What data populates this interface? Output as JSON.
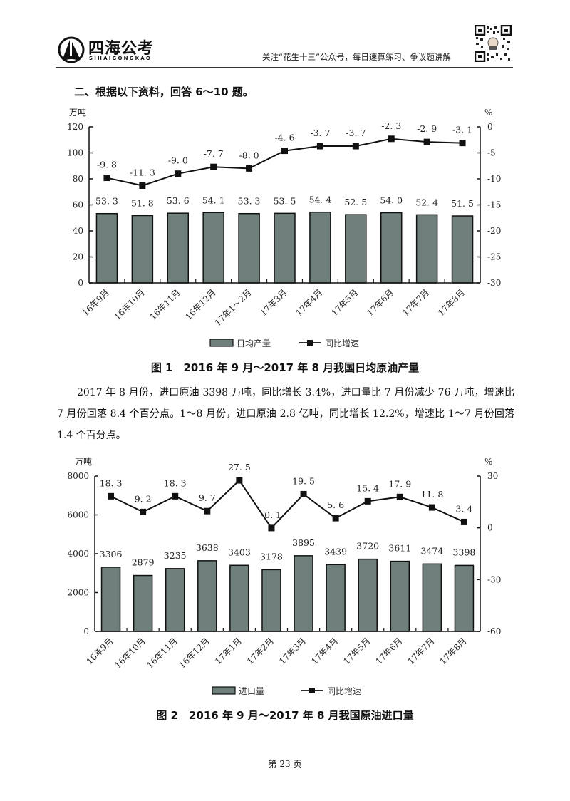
{
  "header": {
    "logo_cn": "四海公考",
    "logo_en": "SIHAIGONGKAO",
    "slogan": "关注“花生十三”公众号，每日速算练习、争议题讲解",
    "qr_icon": "qr-code"
  },
  "section_title": "二、根据以下资料，回答 6～10 题。",
  "figure1": {
    "caption": "图 1　2016 年 9 月～2017 年 8 月我国日均原油产量",
    "left_unit": "万吨",
    "right_unit": "%",
    "legend": {
      "bar": "日均产量",
      "line": "同比增速"
    }
  },
  "paragraph": "2017 年 8 月份，进口原油 3398 万吨，同比增长 3.4%，进口量比 7 月份减少 76 万吨，增速比 7 月份回落 8.4 个百分点。1～8 月份，进口原油 2.8 亿吨，同比增长 12.2%，增速比 1～7 月份回落 1.4 个百分点。",
  "figure2": {
    "caption": "图 2　2016 年 9 月～2017 年 8 月我国原油进口量",
    "left_unit": "万吨",
    "right_unit": "%",
    "legend": {
      "bar": "进口量",
      "line": "同比增速"
    }
  },
  "page_number": "第 23 页",
  "colors": {
    "bar": "#6f7f7c",
    "bar_edge": "#111111",
    "line": "#111111",
    "axis": "#111111"
  },
  "chart_data": [
    {
      "type": "bar+line",
      "title": "图 1　2016 年 9 月～2017 年 8 月我国日均原油产量",
      "categories": [
        "16年9月",
        "16年10月",
        "16年11月",
        "16年12月",
        "17年1～2月",
        "17年3月",
        "17年4月",
        "17年5月",
        "17年6月",
        "17年7月",
        "17年8月"
      ],
      "series": [
        {
          "name": "日均产量",
          "type": "bar",
          "axis": "left",
          "values": [
            53.3,
            51.8,
            53.6,
            54.1,
            53.3,
            53.5,
            54.4,
            52.5,
            54.0,
            52.4,
            51.5
          ]
        },
        {
          "name": "同比增速",
          "type": "line",
          "axis": "right",
          "values": [
            -9.8,
            -11.3,
            -9.0,
            -7.7,
            -8.0,
            -4.6,
            -3.7,
            -3.7,
            -2.3,
            -2.9,
            -3.1
          ]
        }
      ],
      "ylabel_left": "万吨",
      "ylabel_right": "%",
      "ylim_left": [
        0,
        120
      ],
      "yticks_left": [
        0,
        20,
        40,
        60,
        80,
        100,
        120
      ],
      "ylim_right": [
        -30,
        0
      ],
      "yticks_right": [
        -30,
        -25,
        -20,
        -15,
        -10,
        -5,
        0
      ],
      "legend_position": "bottom",
      "grid": false
    },
    {
      "type": "bar+line",
      "title": "图 2　2016 年 9 月～2017 年 8 月我国原油进口量",
      "categories": [
        "16年9月",
        "16年10月",
        "16年11月",
        "16年12月",
        "17年1月",
        "17年2月",
        "17年3月",
        "17年4月",
        "17年5月",
        "17年6月",
        "17年7月",
        "17年8月"
      ],
      "series": [
        {
          "name": "进口量",
          "type": "bar",
          "axis": "left",
          "values": [
            3306,
            2879,
            3235,
            3638,
            3403,
            3178,
            3895,
            3439,
            3720,
            3611,
            3474,
            3398
          ]
        },
        {
          "name": "同比增速",
          "type": "line",
          "axis": "right",
          "values": [
            18.3,
            9.2,
            18.3,
            9.7,
            27.5,
            -0.1,
            19.5,
            5.6,
            15.4,
            17.9,
            11.8,
            3.4
          ]
        }
      ],
      "ylabel_left": "万吨",
      "ylabel_right": "%",
      "ylim_left": [
        0,
        8000
      ],
      "yticks_left": [
        0,
        2000,
        4000,
        6000,
        8000
      ],
      "ylim_right": [
        -60,
        30
      ],
      "yticks_right": [
        -60,
        -30,
        0,
        30
      ],
      "legend_position": "bottom",
      "grid": false
    }
  ]
}
